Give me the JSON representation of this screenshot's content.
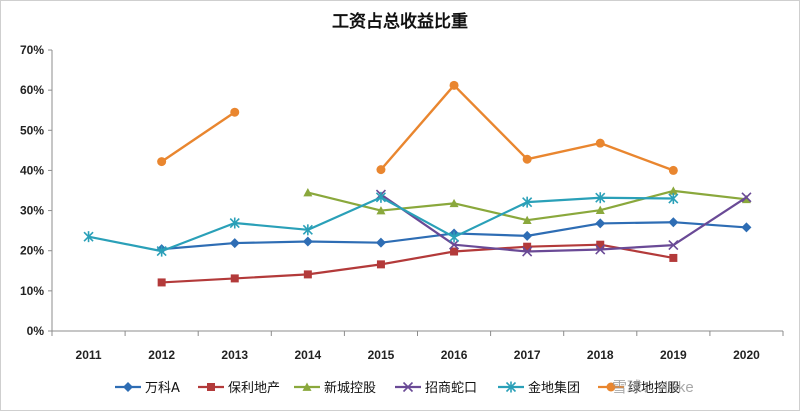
{
  "chart_data": {
    "type": "line",
    "title": "工资占总收益比重",
    "x": [
      "2011",
      "2012",
      "2013",
      "2014",
      "2015",
      "2016",
      "2017",
      "2018",
      "2019",
      "2020"
    ],
    "y_ticks": [
      "0%",
      "10%",
      "20%",
      "30%",
      "40%",
      "50%",
      "60%",
      "70%"
    ],
    "ylim": [
      0,
      70
    ],
    "grid": false,
    "legend_position": "bottom",
    "series": [
      {
        "name": "万科A",
        "color": "#2e6db4",
        "marker": "diamond",
        "values": [
          null,
          20.4,
          21.9,
          22.3,
          22.0,
          24.3,
          23.7,
          26.8,
          27.1,
          25.8
        ]
      },
      {
        "name": "保利地产",
        "color": "#b33a3a",
        "marker": "square",
        "values": [
          null,
          12.1,
          13.1,
          14.1,
          16.6,
          19.8,
          21.0,
          21.5,
          18.2,
          null
        ]
      },
      {
        "name": "新城控股",
        "color": "#8aa83c",
        "marker": "triangle",
        "values": [
          null,
          null,
          null,
          34.5,
          30.0,
          31.8,
          27.6,
          30.1,
          34.9,
          32.8
        ]
      },
      {
        "name": "招商蛇口",
        "color": "#6a4a96",
        "marker": "x",
        "values": [
          null,
          null,
          null,
          null,
          34.0,
          21.5,
          19.8,
          20.3,
          21.4,
          33.3
        ]
      },
      {
        "name": "金地集团",
        "color": "#2aa0b8",
        "marker": "star",
        "values": [
          23.5,
          19.9,
          26.9,
          25.2,
          33.3,
          23.4,
          32.1,
          33.2,
          33.0,
          null
        ]
      },
      {
        "name": "绿地控股",
        "color": "#e9862f",
        "marker": "circle",
        "values": [
          null,
          42.2,
          54.5,
          null,
          40.2,
          61.2,
          42.8,
          46.8,
          40.0,
          null
        ]
      }
    ]
  },
  "watermark": {
    "text": "雪球：villike"
  }
}
